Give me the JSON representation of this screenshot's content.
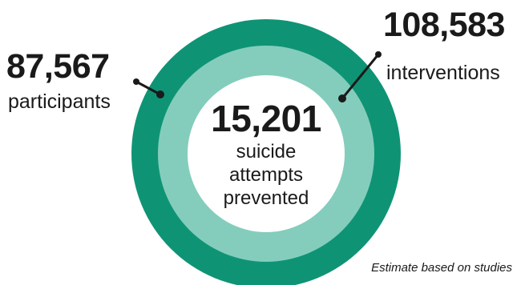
{
  "stats": {
    "participants": {
      "value": "87,567",
      "label": "participants"
    },
    "interventions": {
      "value": "108,583",
      "label": "interventions"
    },
    "center": {
      "value": "15,201",
      "lines": [
        "suicide",
        "attempts",
        "prevented"
      ]
    }
  },
  "footnote": "Estimate based on studies",
  "colors": {
    "outer_ring": "#0e9474",
    "middle_ring": "#84cdbc",
    "inner_circle": "#ffffff",
    "text": "#1a1a1a"
  }
}
